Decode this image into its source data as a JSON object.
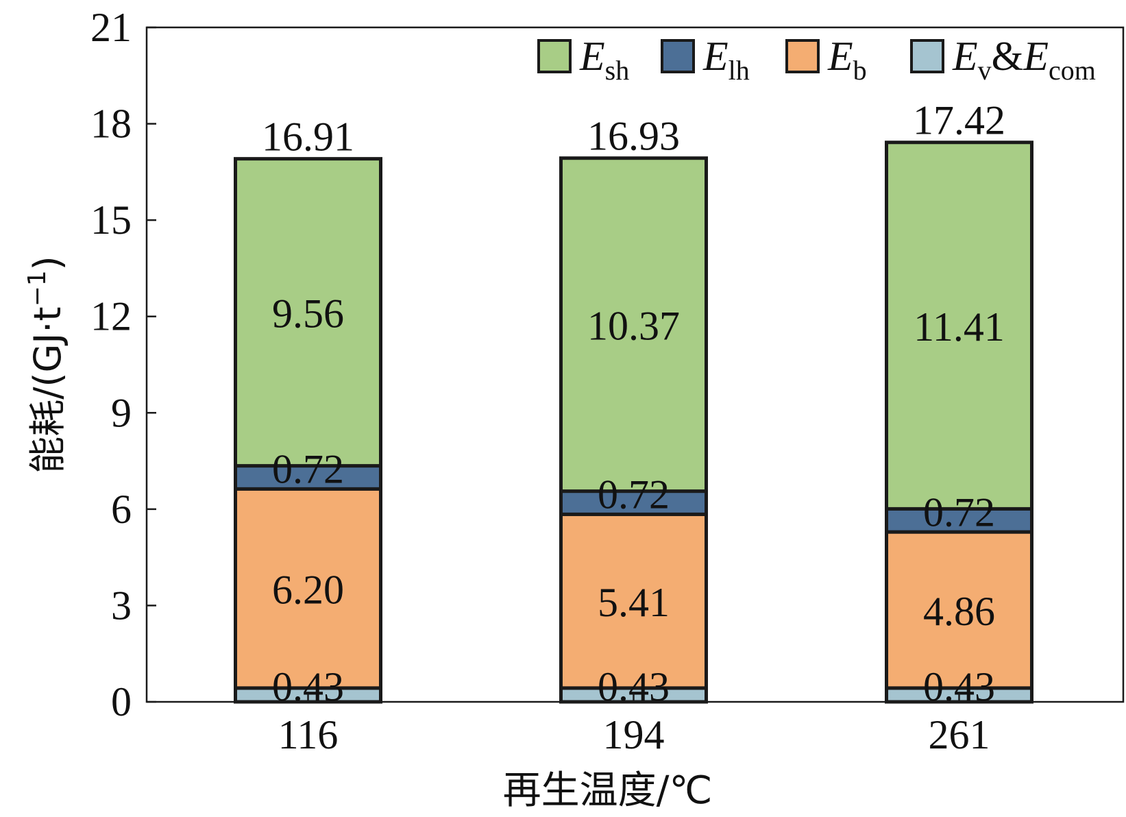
{
  "chart_data": {
    "type": "bar",
    "stacked": true,
    "categories": [
      "116",
      "194",
      "261"
    ],
    "series": [
      {
        "name": "E_v&E_com",
        "values": [
          0.43,
          0.43,
          0.43
        ],
        "color": "#a5c4d0",
        "labels": [
          "0.43",
          "0.43",
          "0.43"
        ]
      },
      {
        "name": "E_b",
        "values": [
          6.2,
          5.41,
          4.86
        ],
        "color": "#f4ad72",
        "labels": [
          "6.20",
          "5.41",
          "4.86"
        ]
      },
      {
        "name": "E_lh",
        "values": [
          0.72,
          0.72,
          0.72
        ],
        "color": "#4c6f96",
        "labels": [
          "0.72",
          "0.72",
          "0.72"
        ]
      },
      {
        "name": "E_sh",
        "values": [
          9.56,
          10.37,
          11.41
        ],
        "color": "#a8cd86",
        "labels": [
          "9.56",
          "10.37",
          "11.41"
        ]
      }
    ],
    "totals": [
      "16.91",
      "16.93",
      "17.42"
    ],
    "xlabel": "再生温度/℃",
    "ylabel": {
      "main": "能耗/(GJ·t",
      "sup": "−1",
      "close": ")"
    },
    "ylim": [
      0,
      21
    ],
    "yticks": [
      0,
      3,
      6,
      9,
      12,
      15,
      18,
      21
    ],
    "grid": false,
    "legend": {
      "placement": "top-right",
      "entries": [
        {
          "base": "E",
          "sub": "sh",
          "after": "",
          "sub2": "",
          "color": "#a8cd86"
        },
        {
          "base": "E",
          "sub": "lh",
          "after": "",
          "sub2": "",
          "color": "#4c6f96"
        },
        {
          "base": "E",
          "sub": "b",
          "after": "",
          "sub2": "",
          "color": "#f4ad72"
        },
        {
          "base": "E",
          "sub": "v",
          "after": "&E",
          "sub2": "com",
          "color": "#a5c4d0"
        }
      ]
    }
  }
}
